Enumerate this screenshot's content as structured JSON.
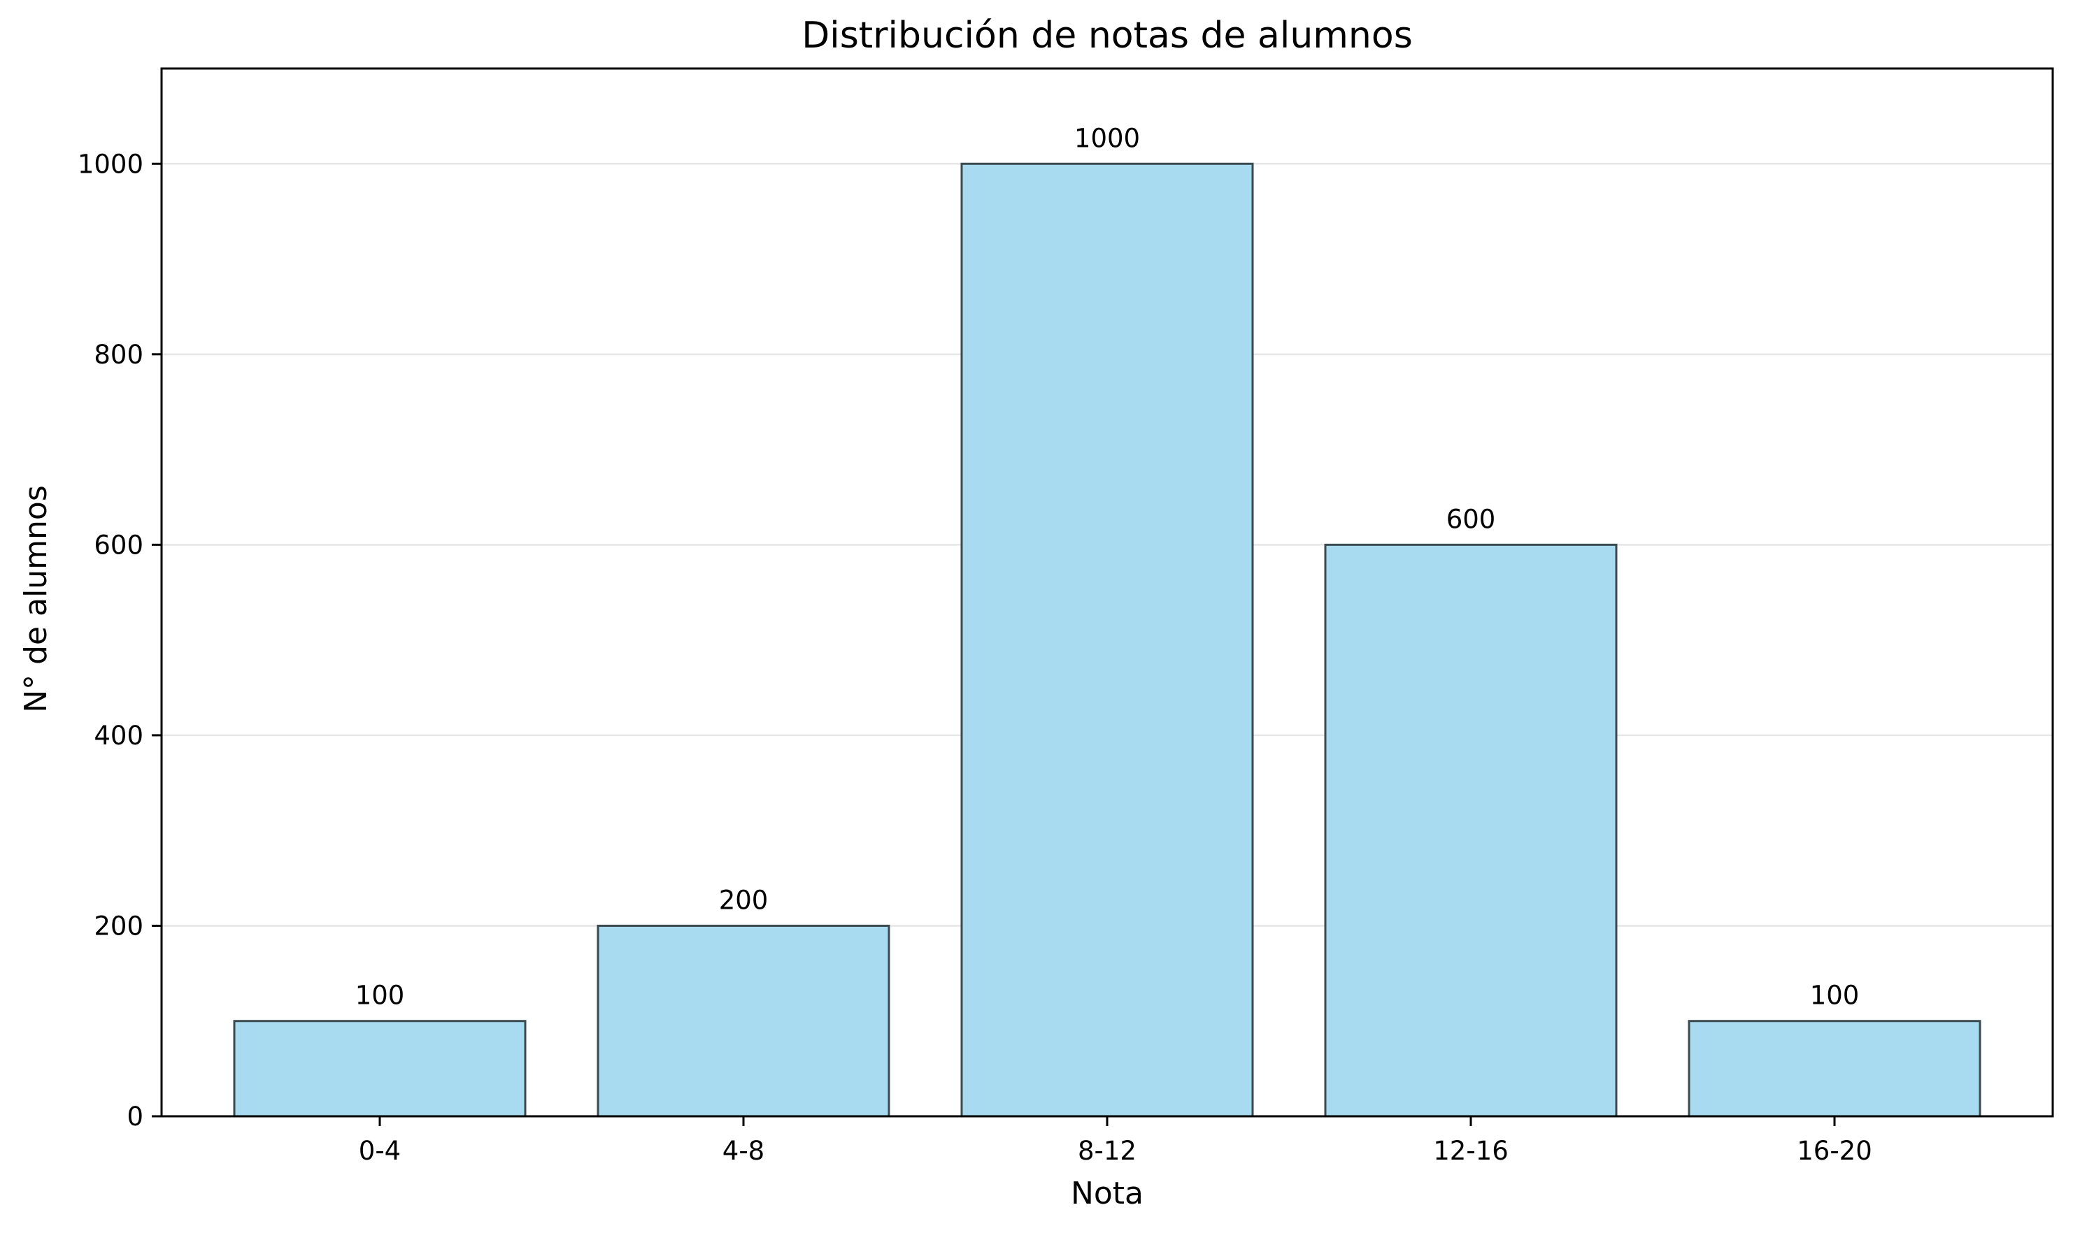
{
  "chart_data": {
    "type": "bar",
    "title": "Distribución de notas de alumnos",
    "xlabel": "Nota",
    "ylabel": "N° de alumnos",
    "categories": [
      "0-4",
      "4-8",
      "8-12",
      "12-16",
      "16-20"
    ],
    "values": [
      100,
      200,
      1000,
      600,
      100
    ],
    "data_labels": [
      "100",
      "200",
      "1000",
      "600",
      "100"
    ],
    "ylim": [
      0,
      1100
    ],
    "yticks": [
      0,
      200,
      400,
      600,
      800,
      1000
    ],
    "ytick_labels": [
      "0",
      "200",
      "400",
      "600",
      "800",
      "1000"
    ],
    "grid": "y",
    "legend": "none",
    "colors": {
      "bar_fill": "#a8dbef",
      "bar_edge": "#3a4a4f"
    }
  }
}
